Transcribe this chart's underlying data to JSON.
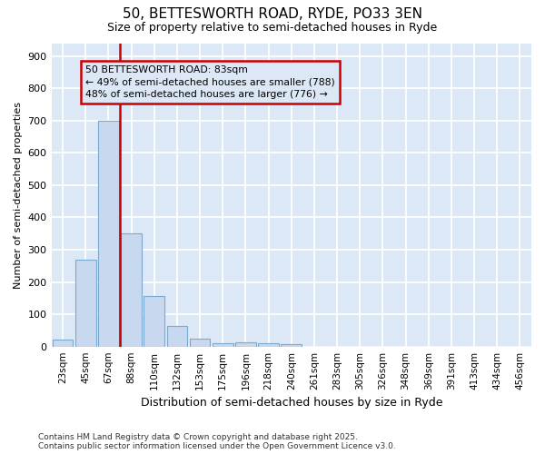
{
  "title1": "50, BETTESWORTH ROAD, RYDE, PO33 3EN",
  "title2": "Size of property relative to semi-detached houses in Ryde",
  "xlabel": "Distribution of semi-detached houses by size in Ryde",
  "ylabel": "Number of semi-detached properties",
  "bar_color": "#c8d8ee",
  "bar_edge_color": "#7aaad0",
  "plot_bg_color": "#dce8f5",
  "fig_bg_color": "#ffffff",
  "grid_color": "#ffffff",
  "annotation_box_color": "#cc0000",
  "vline_color": "#cc0000",
  "annotation_text": "50 BETTESWORTH ROAD: 83sqm\n← 49% of semi-detached houses are smaller (788)\n48% of semi-detached houses are larger (776) →",
  "footer_text": "Contains HM Land Registry data © Crown copyright and database right 2025.\nContains public sector information licensed under the Open Government Licence v3.0.",
  "categories": [
    "23sqm",
    "45sqm",
    "67sqm",
    "88sqm",
    "110sqm",
    "132sqm",
    "153sqm",
    "175sqm",
    "196sqm",
    "218sqm",
    "240sqm",
    "261sqm",
    "283sqm",
    "305sqm",
    "326sqm",
    "348sqm",
    "369sqm",
    "391sqm",
    "413sqm",
    "434sqm",
    "456sqm"
  ],
  "values": [
    22,
    270,
    700,
    350,
    158,
    65,
    25,
    10,
    13,
    10,
    8,
    0,
    0,
    0,
    0,
    0,
    0,
    0,
    0,
    0,
    0
  ],
  "ylim": [
    0,
    940
  ],
  "yticks": [
    0,
    100,
    200,
    300,
    400,
    500,
    600,
    700,
    800,
    900
  ],
  "bar_width": 0.9,
  "figsize": [
    6.0,
    5.0
  ],
  "dpi": 100,
  "vline_pos": 3.0
}
